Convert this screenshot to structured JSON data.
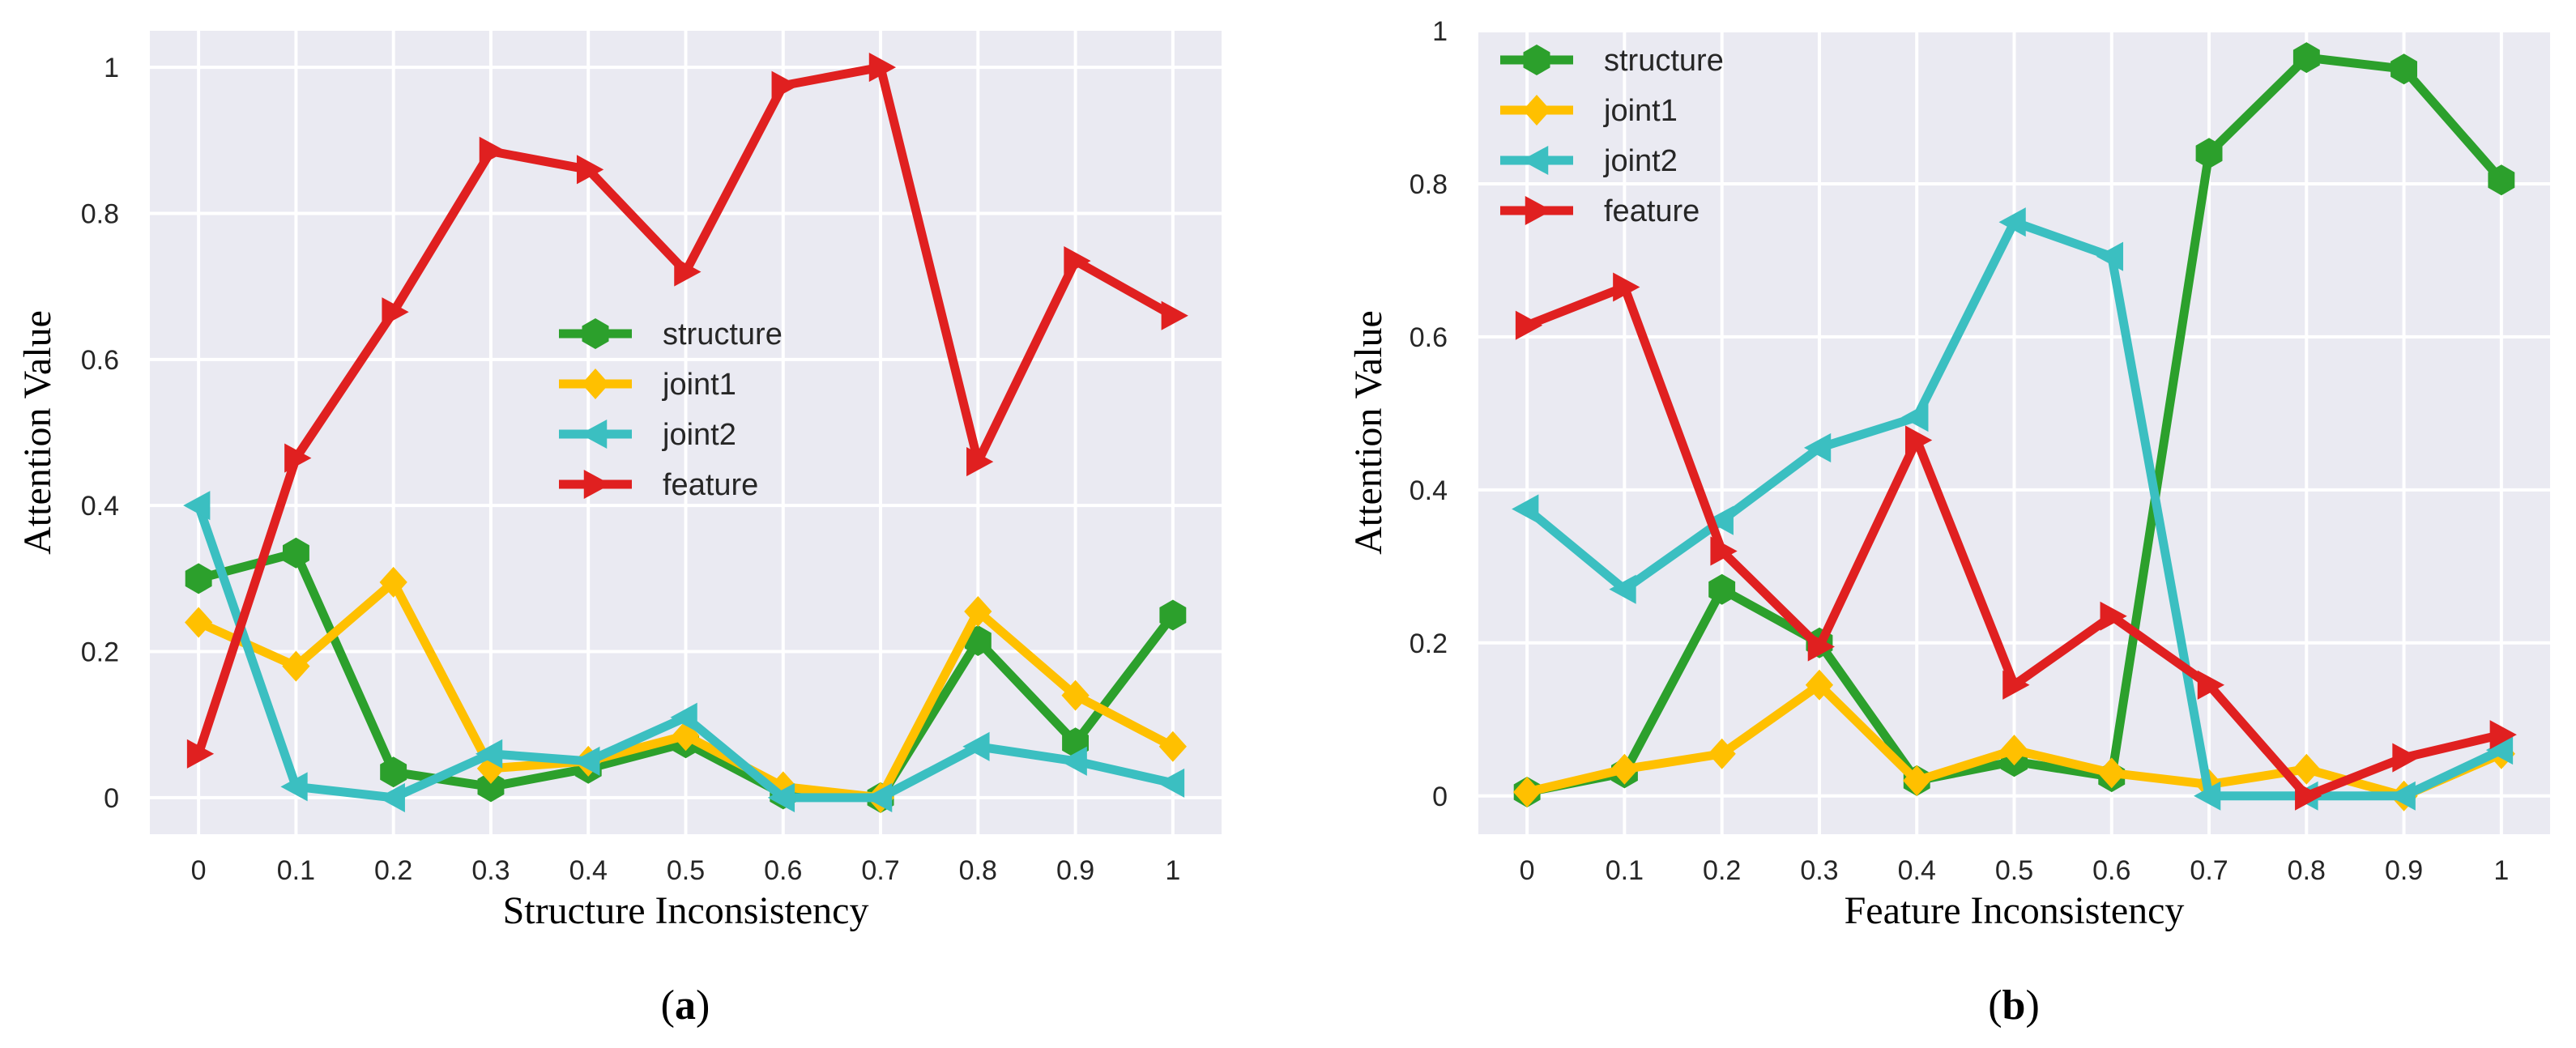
{
  "chart_data": [
    {
      "panel_label": "a",
      "type": "line",
      "xlabel": "Structure Inconsistency",
      "ylabel": "Attention Value",
      "x": [
        0,
        0.1,
        0.2,
        0.3,
        0.4,
        0.5,
        0.6,
        0.7,
        0.8,
        0.9,
        1
      ],
      "x_tick_labels": [
        "0",
        "0.1",
        "0.2",
        "0.3",
        "0.4",
        "0.5",
        "0.6",
        "0.7",
        "0.8",
        "0.9",
        "1"
      ],
      "y_ticks": [
        0,
        0.2,
        0.4,
        0.6,
        0.8,
        1
      ],
      "y_tick_labels": [
        "0",
        "0.2",
        "0.4",
        "0.6",
        "0.8",
        "1"
      ],
      "xlim": [
        -0.05,
        1.05
      ],
      "ylim": [
        -0.05,
        1.05
      ],
      "grid": true,
      "legend_position": "center",
      "series": [
        {
          "name": "structure",
          "color": "#2ca02c",
          "marker": "hexagon",
          "values": [
            0.3,
            0.335,
            0.035,
            0.015,
            0.04,
            0.075,
            0.005,
            0.0,
            0.215,
            0.075,
            0.25
          ]
        },
        {
          "name": "joint1",
          "color": "#ffc000",
          "marker": "diamond",
          "values": [
            0.24,
            0.18,
            0.295,
            0.04,
            0.05,
            0.085,
            0.015,
            0.0,
            0.255,
            0.14,
            0.07
          ]
        },
        {
          "name": "joint2",
          "color": "#3bbfc1",
          "marker": "triangle-left",
          "values": [
            0.4,
            0.015,
            0.0,
            0.06,
            0.05,
            0.11,
            0.0,
            0.0,
            0.07,
            0.05,
            0.02
          ]
        },
        {
          "name": "feature",
          "color": "#e02020",
          "marker": "triangle-right",
          "values": [
            0.06,
            0.465,
            0.665,
            0.885,
            0.86,
            0.72,
            0.975,
            1.0,
            0.46,
            0.735,
            0.66
          ]
        }
      ]
    },
    {
      "panel_label": "b",
      "type": "line",
      "xlabel": "Feature Inconsistency",
      "ylabel": "Attention Value",
      "x": [
        0,
        0.1,
        0.2,
        0.3,
        0.4,
        0.5,
        0.6,
        0.7,
        0.8,
        0.9,
        1
      ],
      "x_tick_labels": [
        "0",
        "0.1",
        "0.2",
        "0.3",
        "0.4",
        "0.5",
        "0.6",
        "0.7",
        "0.8",
        "0.9",
        "1"
      ],
      "y_ticks": [
        0,
        0.2,
        0.4,
        0.6,
        0.8,
        1
      ],
      "y_tick_labels": [
        "0",
        "0.2",
        "0.4",
        "0.6",
        "0.8",
        "1"
      ],
      "xlim": [
        -0.05,
        1.05
      ],
      "ylim": [
        -0.05,
        1.0
      ],
      "grid": true,
      "legend_position": "top-left",
      "series": [
        {
          "name": "structure",
          "color": "#2ca02c",
          "marker": "hexagon",
          "values": [
            0.005,
            0.03,
            0.27,
            0.2,
            0.02,
            0.045,
            0.025,
            0.84,
            0.965,
            0.95,
            0.805
          ]
        },
        {
          "name": "joint1",
          "color": "#ffc000",
          "marker": "diamond",
          "values": [
            0.005,
            0.035,
            0.055,
            0.145,
            0.02,
            0.06,
            0.03,
            0.015,
            0.035,
            0.0,
            0.055
          ]
        },
        {
          "name": "joint2",
          "color": "#3bbfc1",
          "marker": "triangle-left",
          "values": [
            0.375,
            0.27,
            0.36,
            0.455,
            0.495,
            0.75,
            0.705,
            0.0,
            0.0,
            0.0,
            0.06
          ]
        },
        {
          "name": "feature",
          "color": "#e02020",
          "marker": "triangle-right",
          "values": [
            0.615,
            0.665,
            0.32,
            0.195,
            0.465,
            0.145,
            0.235,
            0.145,
            0.0,
            0.05,
            0.08
          ]
        }
      ]
    }
  ]
}
